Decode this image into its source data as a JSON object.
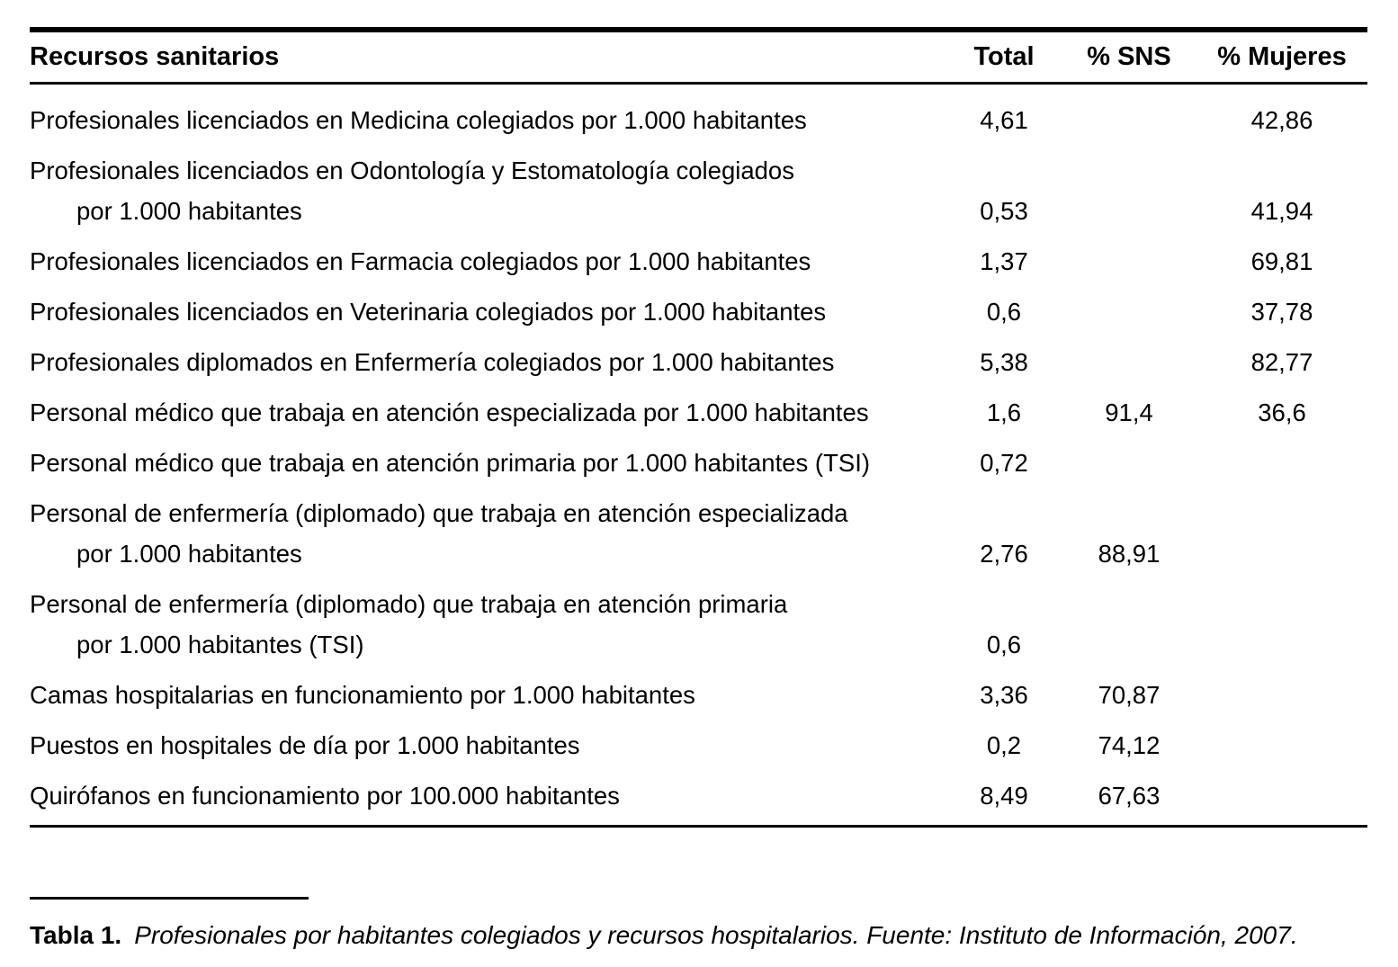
{
  "table": {
    "header": {
      "label": "Recursos sanitarios",
      "total": "Total",
      "sns": "% SNS",
      "mujeres": "% Mujeres"
    },
    "rows": [
      {
        "lines": [
          "Profesionales licenciados en Medicina colegiados por 1.000 habitantes"
        ],
        "total": "4,61",
        "sns": "",
        "mujeres": "42,86"
      },
      {
        "lines": [
          "Profesionales licenciados en Odontología y Estomatología colegiados",
          "por 1.000 habitantes"
        ],
        "total": "0,53",
        "sns": "",
        "mujeres": "41,94"
      },
      {
        "lines": [
          "Profesionales licenciados en Farmacia colegiados por 1.000 habitantes"
        ],
        "total": "1,37",
        "sns": "",
        "mujeres": "69,81"
      },
      {
        "lines": [
          "Profesionales licenciados en Veterinaria colegiados por 1.000 habitantes"
        ],
        "total": "0,6",
        "sns": "",
        "mujeres": "37,78"
      },
      {
        "lines": [
          "Profesionales diplomados en Enfermería colegiados por 1.000 habitantes"
        ],
        "total": "5,38",
        "sns": "",
        "mujeres": "82,77"
      },
      {
        "lines": [
          "Personal médico que trabaja en atención especializada por 1.000 habitantes"
        ],
        "total": "1,6",
        "sns": "91,4",
        "mujeres": "36,6"
      },
      {
        "lines": [
          "Personal médico que trabaja en atención primaria por 1.000 habitantes (TSI)"
        ],
        "total": "0,72",
        "sns": "",
        "mujeres": ""
      },
      {
        "lines": [
          "Personal de enfermería (diplomado) que trabaja en atención especializada",
          "por 1.000 habitantes"
        ],
        "total": "2,76",
        "sns": "88,91",
        "mujeres": ""
      },
      {
        "lines": [
          "Personal de enfermería (diplomado) que trabaja en atención primaria",
          "por 1.000 habitantes (TSI)"
        ],
        "total": "0,6",
        "sns": "",
        "mujeres": ""
      },
      {
        "lines": [
          "Camas hospitalarias en funcionamiento por 1.000 habitantes"
        ],
        "total": "3,36",
        "sns": "70,87",
        "mujeres": ""
      },
      {
        "lines": [
          "Puestos en hospitales de día por 1.000 habitantes"
        ],
        "total": "0,2",
        "sns": "74,12",
        "mujeres": ""
      },
      {
        "lines": [
          "Quirófanos en funcionamiento por 100.000 habitantes"
        ],
        "total": "8,49",
        "sns": "67,63",
        "mujeres": ""
      }
    ]
  },
  "caption": {
    "label": "Tabla 1.",
    "text": "Profesionales por habitantes colegiados y recursos hospitalarios. Fuente: Instituto de Información, 2007."
  }
}
